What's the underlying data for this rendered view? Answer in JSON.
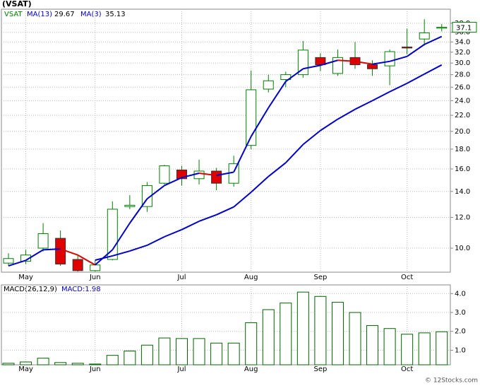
{
  "chart_data": [
    {
      "type": "candlestick",
      "title": "(VSAT)",
      "log_scale": true,
      "grid": true,
      "categories": [
        null,
        "May",
        null,
        null,
        null,
        "Jun",
        null,
        null,
        null,
        null,
        "Jul",
        null,
        null,
        null,
        "Aug",
        null,
        null,
        null,
        "Sep",
        null,
        null,
        null,
        null,
        "Oct",
        null,
        null
      ],
      "ylim": [
        8.67,
        41.3
      ],
      "yticks": [
        {
          "value": 10,
          "label": "10.0"
        },
        {
          "value": 12,
          "label": "12.0"
        },
        {
          "value": 14,
          "label": "14.0"
        },
        {
          "value": 16,
          "label": "16.0"
        },
        {
          "value": 18,
          "label": "18.0"
        },
        {
          "value": 20,
          "label": "20.0"
        },
        {
          "value": 22,
          "label": "22.0"
        },
        {
          "value": 24,
          "label": "24.0"
        },
        {
          "value": 26,
          "label": "26.0"
        },
        {
          "value": 28,
          "label": "28.0"
        },
        {
          "value": 30,
          "label": "30.0"
        },
        {
          "value": 32,
          "label": "32.0"
        },
        {
          "value": 34,
          "label": "34.0"
        },
        {
          "value": 36,
          "label": "36.0"
        },
        {
          "value": 38,
          "label": "38.0"
        }
      ],
      "series": [
        {
          "name": "VSAT",
          "color": "#008000",
          "up_color": "#ffffff",
          "down_color": "#e00000",
          "open": [
            9.15,
            9.25,
            10.0,
            10.6,
            9.35,
            8.75,
            9.35,
            12.8,
            12.8,
            14.7,
            15.9,
            15.1,
            15.8,
            14.7,
            18.4,
            25.7,
            27.2,
            28.0,
            31.0,
            28.2,
            31.0,
            29.7,
            29.5,
            33.0,
            34.6,
            36.9
          ],
          "high": [
            9.7,
            9.9,
            11.6,
            11.1,
            9.6,
            9.3,
            13.2,
            13.7,
            14.8,
            16.4,
            16.3,
            16.9,
            16.1,
            17.3,
            28.7,
            28.0,
            28.5,
            34.2,
            31.8,
            32.5,
            34.0,
            30.5,
            32.5,
            36.8,
            38.9,
            37.8
          ],
          "low": [
            9.0,
            9.1,
            9.8,
            9.0,
            8.7,
            8.7,
            9.3,
            12.6,
            12.4,
            14.6,
            14.5,
            14.6,
            14.1,
            14.4,
            18.0,
            25.2,
            26.0,
            27.5,
            28.6,
            27.8,
            29.0,
            27.8,
            26.3,
            31.6,
            33.3,
            36.2
          ],
          "close": [
            9.4,
            9.6,
            10.9,
            9.1,
            8.75,
            9.05,
            12.6,
            12.9,
            14.5,
            16.3,
            15.1,
            15.8,
            14.7,
            16.5,
            25.6,
            27.0,
            28.0,
            32.4,
            29.7,
            31.0,
            29.7,
            29.0,
            32.1,
            32.8,
            35.9,
            37.1
          ]
        },
        {
          "name": "MA(13)",
          "color": "#0000cc",
          "values": [
            null,
            null,
            null,
            null,
            null,
            9.31,
            9.55,
            9.83,
            10.17,
            10.7,
            11.16,
            11.73,
            12.19,
            12.77,
            13.94,
            15.3,
            16.6,
            18.5,
            20.1,
            21.5,
            22.8,
            24.0,
            25.3,
            26.6,
            28.1,
            29.67
          ]
        },
        {
          "name": "MA(3)",
          "color": "#0000cc",
          "down_color": "#dd0000",
          "values": [
            9.0,
            9.3,
            9.9,
            9.95,
            9.6,
            9.05,
            9.9,
            11.6,
            13.4,
            14.5,
            15.2,
            15.6,
            15.4,
            15.7,
            19.4,
            23.0,
            26.9,
            29.0,
            29.6,
            30.5,
            30.3,
            29.8,
            30.3,
            31.2,
            33.5,
            35.13
          ]
        }
      ]
    },
    {
      "type": "bar",
      "title": "MACD(26,12,9)",
      "grid": true,
      "ylim": [
        0.23,
        4.46
      ],
      "yticks": [
        {
          "value": 1,
          "label": "1.0"
        },
        {
          "value": 2,
          "label": "2.0"
        },
        {
          "value": 3,
          "label": "3.0"
        },
        {
          "value": 4,
          "label": "4.0"
        }
      ],
      "series": [
        {
          "name": "MACD",
          "color": "#006400",
          "values": [
            0.31,
            0.38,
            0.58,
            0.35,
            0.31,
            0.27,
            0.73,
            0.96,
            1.27,
            1.65,
            1.62,
            1.62,
            1.38,
            1.38,
            2.46,
            3.15,
            3.5,
            4.08,
            3.85,
            3.54,
            3.0,
            2.31,
            2.15,
            1.85,
            1.92,
            1.98
          ]
        }
      ]
    },
    {
      "type": "text",
      "credit": "© 12Stocks.com"
    }
  ]
}
